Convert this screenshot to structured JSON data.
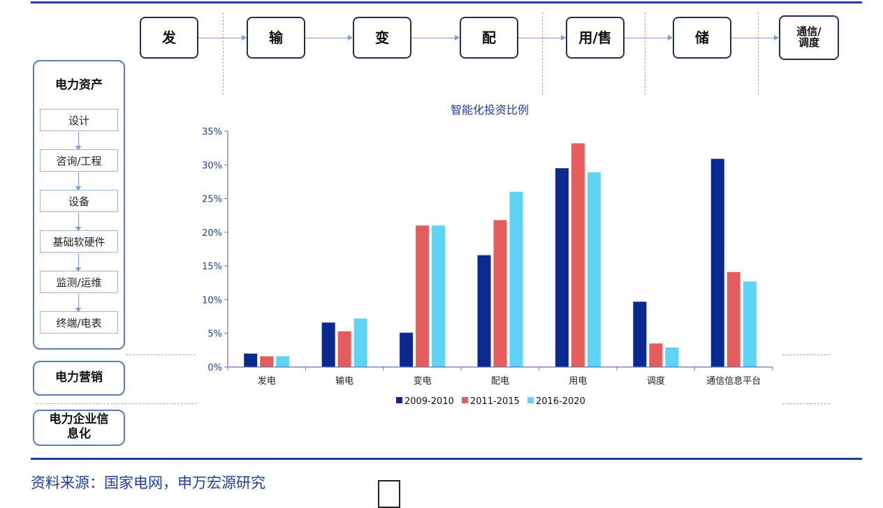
{
  "stages": [
    "发",
    "输",
    "变",
    "配",
    "用/售",
    "储",
    "通信/\n调度"
  ],
  "sidebar": {
    "asset_title": "电力资产",
    "items": [
      "设计",
      "咨询/工程",
      "设备",
      "基础软硬件",
      "监测/运维",
      "终端/电表"
    ],
    "marketing_title": "电力营销",
    "informatization_title": "电力企业信\n息化"
  },
  "source": "资料来源：国家电网，申万宏源研究",
  "colors": {
    "rule": "#1f3f9a",
    "s1": "#0a2a8f",
    "s2": "#e45d5d",
    "s3": "#5fd3f6",
    "axis": "#5b7ab6",
    "title": "#1f3f9a"
  },
  "chart_data": {
    "type": "bar",
    "title": "智能化投资比例",
    "categories": [
      "发电",
      "输电",
      "变电",
      "配电",
      "用电",
      "调度",
      "通信信息平台"
    ],
    "series": [
      {
        "name": "2009-2010",
        "values": [
          2,
          6.6,
          5.1,
          16.6,
          29.5,
          9.7,
          30.9
        ]
      },
      {
        "name": "2011-2015",
        "values": [
          1.6,
          5.3,
          21,
          21.8,
          33.2,
          3.5,
          14.1
        ]
      },
      {
        "name": "2016-2020",
        "values": [
          1.6,
          7.2,
          21,
          26,
          28.9,
          2.9,
          12.7
        ]
      }
    ],
    "ylim": [
      0,
      35
    ],
    "yticks": [
      "0%",
      "5%",
      "10%",
      "15%",
      "20%",
      "25%",
      "30%",
      "35%"
    ],
    "legend_position": "bottom",
    "grid": false
  }
}
